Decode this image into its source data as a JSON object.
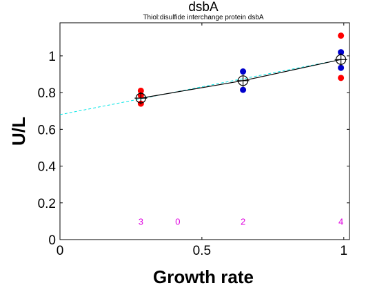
{
  "chart_data": {
    "type": "scatter",
    "title": "dsbA",
    "subtitle": "Thiol:disulfide interchange protein dsbA",
    "xlabel": "Growth rate",
    "ylabel": "U/L",
    "xlim": [
      0,
      1.02
    ],
    "ylim": [
      0,
      1.18
    ],
    "x_ticks": [
      {
        "value": 0,
        "label": "0"
      },
      {
        "value": 0.5,
        "label": "0.5"
      },
      {
        "value": 1,
        "label": "1"
      }
    ],
    "y_ticks": [
      {
        "value": 0,
        "label": "0"
      },
      {
        "value": 0.2,
        "label": "0.2"
      },
      {
        "value": 0.4,
        "label": "0.4"
      },
      {
        "value": 0.6,
        "label": "0.6"
      },
      {
        "value": 0.8,
        "label": "0.8"
      },
      {
        "value": 1,
        "label": "1"
      }
    ],
    "grid": false,
    "colors": {
      "red": "#ff0000",
      "blue": "#0000cc",
      "fit": "#00e5e5",
      "mean_line": "#000000",
      "counts": "#e000e0"
    },
    "points": [
      {
        "x": 0.285,
        "y": 0.81,
        "color": "red"
      },
      {
        "x": 0.285,
        "y": 0.785,
        "color": "red"
      },
      {
        "x": 0.285,
        "y": 0.74,
        "color": "red"
      },
      {
        "x": 0.645,
        "y": 0.915,
        "color": "blue"
      },
      {
        "x": 0.645,
        "y": 0.815,
        "color": "blue"
      },
      {
        "x": 0.99,
        "y": 1.11,
        "color": "red"
      },
      {
        "x": 0.99,
        "y": 0.88,
        "color": "red"
      },
      {
        "x": 0.99,
        "y": 1.02,
        "color": "blue"
      },
      {
        "x": 0.99,
        "y": 0.935,
        "color": "blue"
      }
    ],
    "means": [
      {
        "x": 0.285,
        "y": 0.77
      },
      {
        "x": 0.645,
        "y": 0.865
      },
      {
        "x": 0.99,
        "y": 0.98
      }
    ],
    "fit_line": {
      "x": [
        0,
        0.99
      ],
      "y": [
        0.68,
        0.98
      ]
    },
    "counts": [
      {
        "x": 0.285,
        "label": "3"
      },
      {
        "x": 0.415,
        "label": "0"
      },
      {
        "x": 0.645,
        "label": "2"
      },
      {
        "x": 0.99,
        "label": "4"
      }
    ],
    "counts_y": 0.1
  }
}
